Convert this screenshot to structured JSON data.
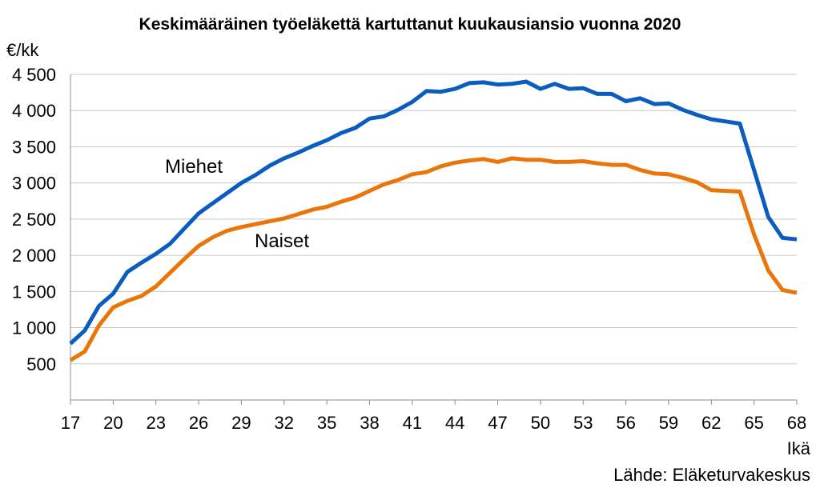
{
  "chart_data": {
    "type": "line",
    "title": "Keskimääräinen työeläkettä kartuttanut kuukausiansio vuonna 2020",
    "ylabel": "€/kk",
    "xlabel": "Ikä",
    "source": "Lähde: Eläketurvakeskus",
    "xlim": [
      17,
      68
    ],
    "ylim": [
      0,
      4500
    ],
    "yticks": [
      500,
      1000,
      1500,
      2000,
      2500,
      3000,
      3500,
      4000,
      4500
    ],
    "ytick_labels": [
      "500",
      "1 000",
      "1 500",
      "2 000",
      "2 500",
      "3 000",
      "3 500",
      "4 000",
      "4 500"
    ],
    "xticks": [
      17,
      20,
      23,
      26,
      29,
      32,
      35,
      38,
      41,
      44,
      47,
      50,
      53,
      56,
      59,
      62,
      65,
      68
    ],
    "xtick_labels": [
      "17",
      "20",
      "23",
      "26",
      "29",
      "32",
      "35",
      "38",
      "41",
      "44",
      "47",
      "50",
      "53",
      "56",
      "59",
      "62",
      "65",
      "68"
    ],
    "grid": true,
    "x": [
      17,
      18,
      19,
      20,
      21,
      22,
      23,
      24,
      25,
      26,
      27,
      28,
      29,
      30,
      31,
      32,
      33,
      34,
      35,
      36,
      37,
      38,
      39,
      40,
      41,
      42,
      43,
      44,
      45,
      46,
      47,
      48,
      49,
      50,
      51,
      52,
      53,
      54,
      55,
      56,
      57,
      58,
      59,
      60,
      61,
      62,
      63,
      64,
      65,
      66,
      67,
      68
    ],
    "series": [
      {
        "name": "Miehet",
        "color": "#0a5cbf",
        "values": [
          780,
          960,
          1300,
          1470,
          1770,
          1900,
          2020,
          2160,
          2370,
          2580,
          2720,
          2860,
          3000,
          3110,
          3240,
          3340,
          3420,
          3510,
          3590,
          3690,
          3760,
          3890,
          3920,
          4010,
          4120,
          4270,
          4260,
          4300,
          4380,
          4390,
          4360,
          4370,
          4400,
          4300,
          4370,
          4300,
          4310,
          4230,
          4230,
          4130,
          4170,
          4090,
          4100,
          4010,
          3940,
          3880,
          3850,
          3820,
          3180,
          2530,
          2240,
          2220
        ]
      },
      {
        "name": "Naiset",
        "color": "#e8760a",
        "values": [
          550,
          670,
          1030,
          1280,
          1370,
          1440,
          1570,
          1760,
          1950,
          2130,
          2250,
          2340,
          2390,
          2430,
          2470,
          2510,
          2570,
          2630,
          2670,
          2740,
          2800,
          2890,
          2980,
          3040,
          3120,
          3150,
          3230,
          3280,
          3310,
          3330,
          3290,
          3340,
          3320,
          3320,
          3290,
          3290,
          3300,
          3270,
          3250,
          3250,
          3180,
          3130,
          3120,
          3070,
          3010,
          2900,
          2890,
          2880,
          2290,
          1790,
          1520,
          1480
        ]
      }
    ]
  }
}
